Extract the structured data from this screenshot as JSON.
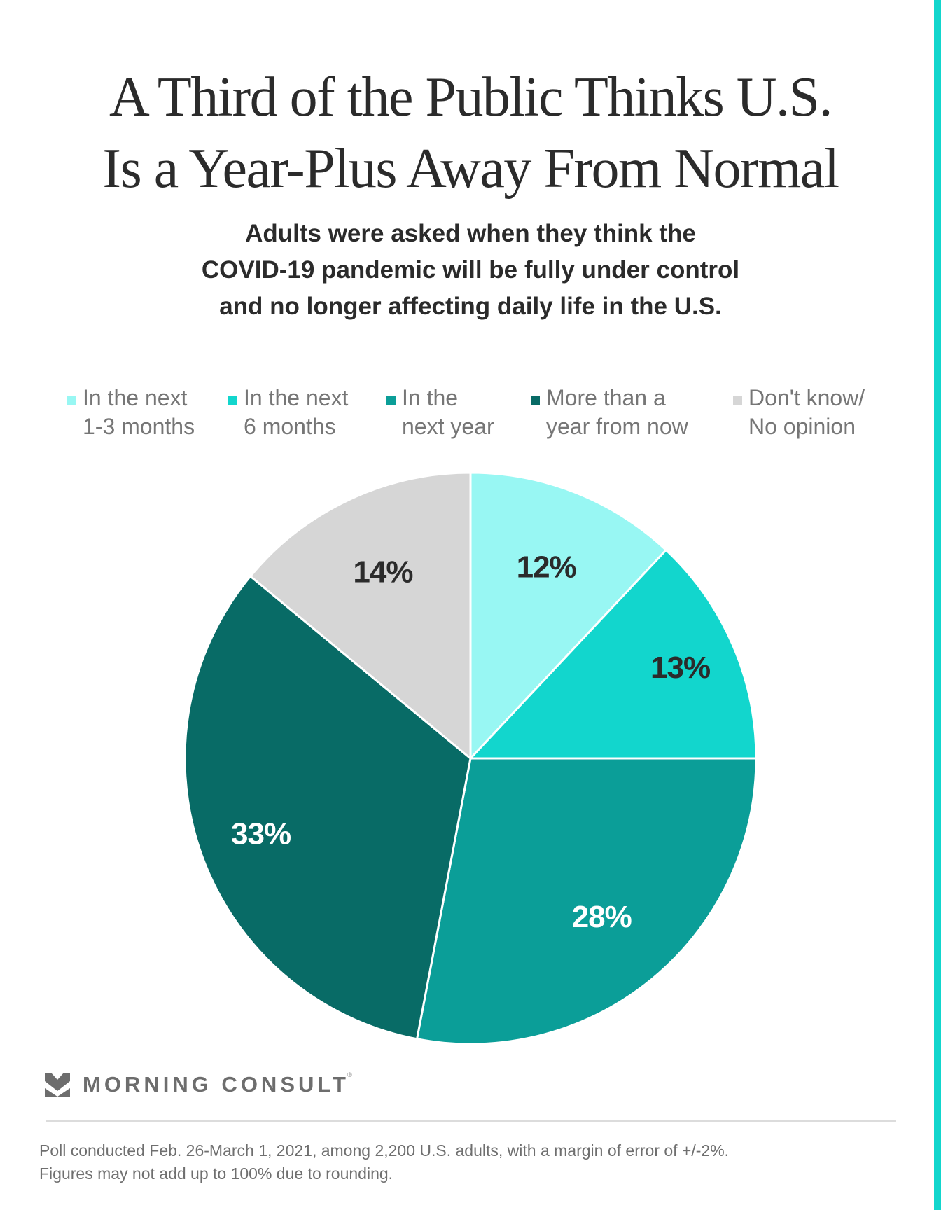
{
  "title": {
    "line1": "A Third of the Public Thinks U.S.",
    "line2": "Is a Year-Plus Away From Normal"
  },
  "subtitle": {
    "line1": "Adults were asked when they think the",
    "line2": "COVID-19 pandemic will be fully under control",
    "line3": "and no longer affecting daily life in the U.S."
  },
  "legend": [
    {
      "line1": "In the next",
      "line2": "1-3 months",
      "color": "#98f7f3"
    },
    {
      "line1": "In the next",
      "line2": "6 months",
      "color": "#12d6cd"
    },
    {
      "line1": "In the",
      "line2": "next year",
      "color": "#0b9e98"
    },
    {
      "line1": "More than a",
      "line2": "year from now",
      "color": "#086b66"
    },
    {
      "line1": "Don't know/",
      "line2": "No opinion",
      "color": "#d6d6d6"
    }
  ],
  "chart_data": {
    "type": "pie",
    "title": "A Third of the Public Thinks U.S. Is a Year-Plus Away From Normal",
    "subtitle": "Adults were asked when they think the COVID-19 pandemic will be fully under control and no longer affecting daily life in the U.S.",
    "start": "top",
    "direction": "clockwise",
    "legend_position": "top",
    "categories": [
      "In the next 1-3 months",
      "In the next 6 months",
      "In the next year",
      "More than a year from now",
      "Don't know/ No opinion"
    ],
    "values": [
      12,
      13,
      28,
      33,
      14
    ],
    "labels": [
      "12%",
      "13%",
      "28%",
      "33%",
      "14%"
    ],
    "colors": [
      "#98f7f3",
      "#12d6cd",
      "#0b9e98",
      "#086b66",
      "#d6d6d6"
    ],
    "label_colors": [
      "#2b2b2b",
      "#2b2b2b",
      "#ffffff",
      "#ffffff",
      "#2b2b2b"
    ],
    "unit": "%"
  },
  "branding": {
    "logo_text": "MORNING CONSULT",
    "registered_mark": "®"
  },
  "footer": {
    "line1": "Poll conducted Feb. 26-March 1, 2021, among 2,200 U.S. adults, with a margin of error of +/-2%.",
    "line2": "Figures may not add up to 100% due to rounding."
  },
  "colors": {
    "accent": "#12d6cd",
    "title_text": "#2b2b2b",
    "legend_text": "#767676",
    "footer_text": "#6f6f6f"
  }
}
